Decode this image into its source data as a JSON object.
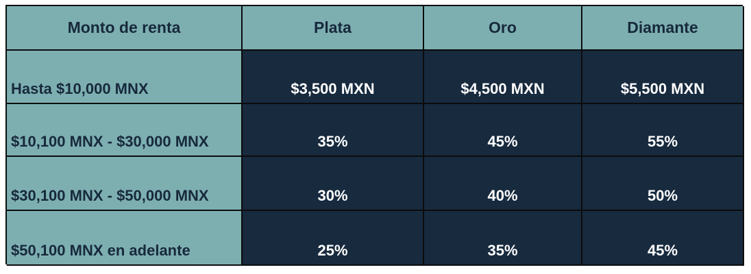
{
  "table": {
    "columns": [
      {
        "label": "Monto de renta"
      },
      {
        "label": "Plata"
      },
      {
        "label": "Oro"
      },
      {
        "label": "Diamante"
      }
    ],
    "rows": [
      {
        "label": "Hasta $10,000 MNX",
        "values": [
          "$3,500 MXN",
          "$4,500 MXN",
          "$5,500 MXN"
        ]
      },
      {
        "label": "$10,100 MNX - $30,000 MNX",
        "values": [
          "35%",
          "45%",
          "55%"
        ]
      },
      {
        "label": "$30,100 MNX - $50,000 MNX",
        "values": [
          "30%",
          "40%",
          "50%"
        ]
      },
      {
        "label": "$50,100 MNX en adelante",
        "values": [
          "25%",
          "35%",
          "45%"
        ]
      }
    ],
    "colors": {
      "header_background": "#7dafb1",
      "label_background": "#7dafb1",
      "data_background": "#172a3e",
      "dark_text": "#17293c",
      "light_text": "#ffffff",
      "border": "#0c0c0c"
    }
  },
  "chart_data": {
    "type": "table",
    "title": "Monto de renta",
    "column_headers": [
      "Monto de renta",
      "Plata",
      "Oro",
      "Diamante"
    ],
    "rows": [
      [
        "Hasta $10,000 MNX",
        "$3,500 MXN",
        "$4,500 MXN",
        "$5,500 MXN"
      ],
      [
        "$10,100 MNX - $30,000 MNX",
        "35%",
        "45%",
        "55%"
      ],
      [
        "$30,100 MNX - $50,000 MNX",
        "30%",
        "40%",
        "50%"
      ],
      [
        "$50,100 MNX en adelante",
        "25%",
        "35%",
        "45%"
      ]
    ]
  }
}
